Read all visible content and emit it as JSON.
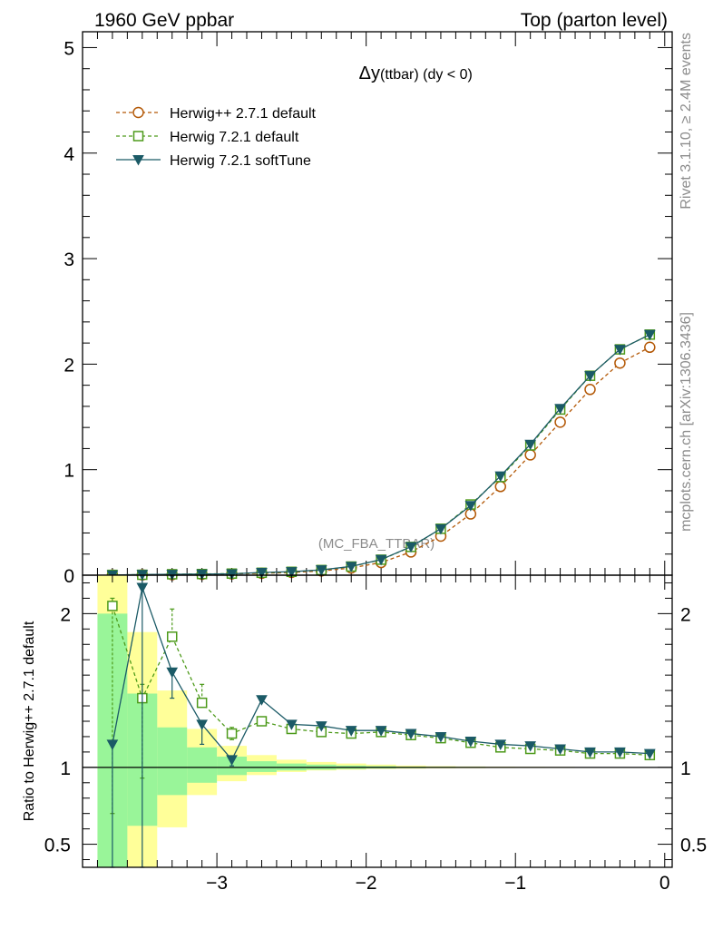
{
  "header": {
    "left": "1960 GeV ppbar",
    "right": "Top (parton level)"
  },
  "plot_title": {
    "main": "Δy",
    "rest": " (ttbar) (dy < 0)"
  },
  "side_labels": {
    "rivet": "Rivet 3.1.10, ≥ 2.4M events",
    "mcplots": "mcplots.cern.ch [arXiv:1306.3436]"
  },
  "watermark": "(MC_FBA_TTBAR)",
  "ratio_ylabel": "Ratio to Herwig++ 2.7.1 default",
  "colors": {
    "herwigpp": "#b35806",
    "herwig721": "#4d9a1a",
    "softtune": "#1b5a66",
    "band_inner": "#99f599",
    "band_outer": "#ffff99"
  },
  "chart_data": [
    {
      "type": "line",
      "panel": "main",
      "xlim": [
        -3.9,
        0.05
      ],
      "ylim": [
        0,
        5.15
      ],
      "x_ticks": [
        -3,
        -2,
        -1,
        0
      ],
      "y_ticks": [
        "0",
        "1",
        "2",
        "3",
        "4",
        "5"
      ],
      "legend_position": "top-left",
      "x": [
        -3.7,
        -3.5,
        -3.3,
        -3.1,
        -2.9,
        -2.7,
        -2.5,
        -2.3,
        -2.1,
        -1.9,
        -1.7,
        -1.5,
        -1.3,
        -1.1,
        -0.9,
        -0.7,
        -0.5,
        -0.3,
        -0.1
      ],
      "series": [
        {
          "name": "Herwig++ 2.7.1 default",
          "marker": "circle",
          "dashed": true,
          "values": [
            0.0015,
            0.003,
            0.005,
            0.008,
            0.012,
            0.018,
            0.026,
            0.04,
            0.068,
            0.12,
            0.22,
            0.37,
            0.58,
            0.84,
            1.14,
            1.45,
            1.76,
            2.01,
            2.16
          ]
        },
        {
          "name": "Herwig 7.2.1 default",
          "marker": "open-square",
          "dashed": true,
          "values": [
            0.003,
            0.004,
            0.009,
            0.011,
            0.015,
            0.023,
            0.032,
            0.049,
            0.082,
            0.147,
            0.268,
            0.44,
            0.67,
            0.93,
            1.23,
            1.57,
            1.89,
            2.14,
            2.28
          ]
        },
        {
          "name": "Herwig 7.2.1 softTune",
          "marker": "filled-triangle-down",
          "dashed": false,
          "values": [
            0.0017,
            0.0065,
            0.008,
            0.0105,
            0.0125,
            0.026,
            0.033,
            0.05,
            0.083,
            0.148,
            0.27,
            0.44,
            0.66,
            0.94,
            1.24,
            1.58,
            1.89,
            2.14,
            2.28
          ]
        }
      ]
    },
    {
      "type": "line",
      "panel": "ratio",
      "xlim": [
        -3.9,
        0.05
      ],
      "ylim": [
        0.35,
        2.25
      ],
      "x_ticks": [
        "−3",
        "−2",
        "−1",
        "0"
      ],
      "y_ticks": [
        "0.5",
        "1",
        "2"
      ],
      "reference": 1,
      "x": [
        -3.7,
        -3.5,
        -3.3,
        -3.1,
        -2.9,
        -2.7,
        -2.5,
        -2.3,
        -2.1,
        -1.9,
        -1.7,
        -1.5,
        -1.3,
        -1.1,
        -0.9,
        -0.7,
        -0.5,
        -0.3,
        -0.1
      ],
      "bin_edges": [
        -3.8,
        -3.6,
        -3.4,
        -3.2,
        -3.0,
        -2.8,
        -2.6,
        -2.4,
        -2.2,
        -2.0,
        -1.8,
        -1.6,
        -1.4,
        -1.2,
        -1.0,
        -0.8,
        -0.6,
        -0.4,
        -0.2,
        0.0
      ],
      "band_inner": [
        [
          0.3,
          2.0
        ],
        [
          0.62,
          1.48
        ],
        [
          0.82,
          1.26
        ],
        [
          0.9,
          1.13
        ],
        [
          0.95,
          1.07
        ],
        [
          0.97,
          1.04
        ],
        [
          0.98,
          1.025
        ],
        [
          0.985,
          1.018
        ],
        [
          0.99,
          1.012
        ],
        [
          0.993,
          1.008
        ],
        [
          0.995,
          1.005
        ],
        [
          0.996,
          1.004
        ],
        [
          0.997,
          1.003
        ],
        [
          0.998,
          1.002
        ],
        [
          0.998,
          1.002
        ],
        [
          0.999,
          1.001
        ],
        [
          0.999,
          1.001
        ],
        [
          0.999,
          1.001
        ],
        [
          0.999,
          1.001
        ]
      ],
      "band_outer": [
        [
          0.25,
          2.3
        ],
        [
          0.2,
          1.88
        ],
        [
          0.61,
          1.5
        ],
        [
          0.82,
          1.25
        ],
        [
          0.91,
          1.14
        ],
        [
          0.95,
          1.08
        ],
        [
          0.97,
          1.05
        ],
        [
          0.98,
          1.035
        ],
        [
          0.985,
          1.025
        ],
        [
          0.99,
          1.018
        ],
        [
          0.992,
          1.012
        ],
        [
          0.994,
          1.008
        ],
        [
          0.995,
          1.006
        ],
        [
          0.996,
          1.005
        ],
        [
          0.997,
          1.004
        ],
        [
          0.998,
          1.003
        ],
        [
          0.998,
          1.002
        ],
        [
          0.999,
          1.002
        ],
        [
          0.999,
          1.001
        ]
      ],
      "series": [
        {
          "name": "Herwig 7.2.1 default",
          "marker": "open-square",
          "dashed": true,
          "values": [
            2.05,
            1.45,
            1.85,
            1.42,
            1.22,
            1.3,
            1.25,
            1.23,
            1.22,
            1.23,
            1.21,
            1.19,
            1.16,
            1.13,
            1.12,
            1.11,
            1.09,
            1.09,
            1.08
          ],
          "err_low": [
            1.35,
            0.52,
            0.0,
            0.0,
            0.04,
            0.0,
            0.0,
            0.0,
            0.0,
            0.0,
            0.0,
            0.0,
            0.0,
            0.0,
            0.0,
            0.0,
            0.0,
            0.0,
            0.0
          ],
          "err_high": [
            0.05,
            0.09,
            0.18,
            0.12,
            0.04,
            0.0,
            0.0,
            0.0,
            0.0,
            0.0,
            0.0,
            0.0,
            0.0,
            0.0,
            0.0,
            0.0,
            0.0,
            0.0,
            0.0
          ]
        },
        {
          "name": "Herwig 7.2.1 softTune",
          "marker": "filled-triangle-down",
          "dashed": false,
          "values": [
            1.15,
            2.17,
            1.62,
            1.28,
            1.05,
            1.44,
            1.28,
            1.27,
            1.24,
            1.24,
            1.22,
            1.2,
            1.17,
            1.15,
            1.14,
            1.12,
            1.1,
            1.1,
            1.09
          ],
          "err_low": [
            0.8,
            1.85,
            0.17,
            0.13,
            0.04,
            0.0,
            0.0,
            0.0,
            0.0,
            0.0,
            0.0,
            0.0,
            0.0,
            0.0,
            0.0,
            0.0,
            0.0,
            0.0,
            0.0
          ],
          "err_high": [
            0.0,
            0.1,
            0.0,
            0.0,
            0.0,
            0.0,
            0.0,
            0.0,
            0.0,
            0.0,
            0.0,
            0.0,
            0.0,
            0.0,
            0.0,
            0.0,
            0.0,
            0.0,
            0.0
          ]
        }
      ]
    }
  ]
}
